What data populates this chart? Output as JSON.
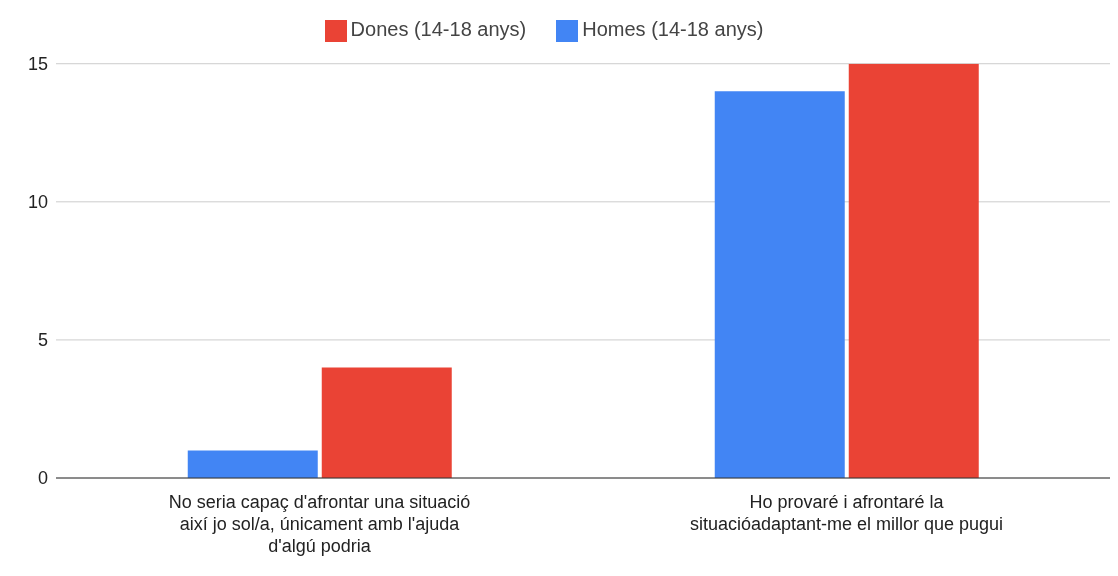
{
  "chart_data": {
    "type": "bar",
    "categories": [
      "No seria capaç d'afrontar una situació així jo sol/a, únicament amb l'ajuda d'algú podria",
      "Ho provaré i afrontaré la situacióadaptant-me el millor que pugui"
    ],
    "series": [
      {
        "name": "Homes (14-18 anys)",
        "color": "#4285f4",
        "values": [
          1,
          14
        ]
      },
      {
        "name": "Dones (14-18 anys)",
        "color": "#ea4335",
        "values": [
          4,
          15
        ]
      }
    ],
    "ylim": [
      0,
      15
    ],
    "yticks": [
      0,
      5,
      10,
      15
    ],
    "grid": "y",
    "legend": "top"
  }
}
